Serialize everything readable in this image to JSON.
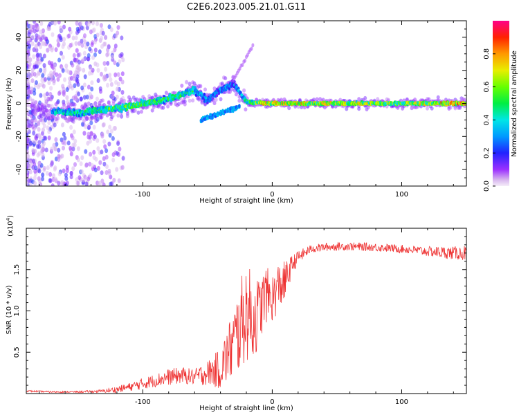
{
  "title": "C2E6.2023.005.21.01.G11",
  "chart_data": [
    {
      "type": "heatmap",
      "title": "C2E6.2023.005.21.01.G11",
      "xlabel": "Height of straight line (km)",
      "ylabel": "Frequency (Hz)",
      "xlim": [
        -190,
        150
      ],
      "ylim": [
        -50,
        50
      ],
      "x_ticks": [
        -100,
        0,
        100
      ],
      "y_ticks": [
        -40,
        -20,
        0,
        20,
        40
      ],
      "grid": false,
      "colorbar": {
        "label": "Normalized spectral amplitude",
        "range": [
          0.0,
          1.0
        ],
        "ticks": [
          0.0,
          0.2,
          0.4,
          0.6,
          0.8
        ]
      },
      "ridge": [
        {
          "x": -165,
          "y": -5,
          "amp": 0.45
        },
        {
          "x": -150,
          "y": -6,
          "amp": 0.5
        },
        {
          "x": -135,
          "y": -4,
          "amp": 0.55
        },
        {
          "x": -120,
          "y": -3,
          "amp": 0.6
        },
        {
          "x": -105,
          "y": -1,
          "amp": 0.6
        },
        {
          "x": -90,
          "y": 1,
          "amp": 0.55
        },
        {
          "x": -75,
          "y": 4,
          "amp": 0.5
        },
        {
          "x": -60,
          "y": 8,
          "amp": 0.5
        },
        {
          "x": -50,
          "y": 2,
          "amp": 0.35
        },
        {
          "x": -40,
          "y": 8,
          "amp": 0.35
        },
        {
          "x": -30,
          "y": 12,
          "amp": 0.3
        },
        {
          "x": -20,
          "y": 1,
          "amp": 0.5
        },
        {
          "x": -5,
          "y": 0,
          "amp": 0.8
        },
        {
          "x": 20,
          "y": 0,
          "amp": 0.75
        },
        {
          "x": 60,
          "y": 0,
          "amp": 0.7
        },
        {
          "x": 100,
          "y": 0,
          "amp": 0.65
        },
        {
          "x": 150,
          "y": 0,
          "amp": 0.85
        }
      ],
      "branch_lower": [
        {
          "x": -55,
          "y": -10
        },
        {
          "x": -40,
          "y": -6
        },
        {
          "x": -25,
          "y": -2
        }
      ]
    },
    {
      "type": "line",
      "xlabel": "Height of straight line (km)",
      "ylabel": "SNR (10 * v/v)",
      "y_multiplier": "(x10",
      "y_multiplier_exp": "4",
      "y_multiplier_close": ")",
      "xlim": [
        -190,
        150
      ],
      "ylim": [
        0,
        2.0
      ],
      "x_ticks": [
        -100,
        0,
        100
      ],
      "y_ticks": [
        0.5,
        1.0,
        1.5
      ],
      "y_tick_labels": [
        "0.5",
        "1.0",
        "1.5"
      ],
      "grid": false,
      "series": [
        {
          "color": "#ee3333",
          "x": [
            -190,
            -170,
            -150,
            -130,
            -120,
            -110,
            -100,
            -90,
            -80,
            -70,
            -60,
            -50,
            -40,
            -35,
            -30,
            -25,
            -20,
            -15,
            -10,
            -5,
            0,
            5,
            10,
            15,
            20,
            30,
            40,
            50,
            60,
            80,
            100,
            120,
            140,
            150
          ],
          "y": [
            0.03,
            0.02,
            0.02,
            0.03,
            0.05,
            0.08,
            0.12,
            0.16,
            0.2,
            0.22,
            0.2,
            0.25,
            0.3,
            0.45,
            0.6,
            0.8,
            1.0,
            0.9,
            1.0,
            1.2,
            1.15,
            1.3,
            1.35,
            1.55,
            1.65,
            1.75,
            1.77,
            1.78,
            1.78,
            1.77,
            1.75,
            1.72,
            1.7,
            1.7
          ],
          "noise": [
            0.01,
            0.01,
            0.01,
            0.02,
            0.04,
            0.05,
            0.07,
            0.08,
            0.1,
            0.1,
            0.1,
            0.15,
            0.25,
            0.35,
            0.45,
            0.55,
            0.6,
            0.55,
            0.4,
            0.35,
            0.3,
            0.3,
            0.25,
            0.12,
            0.08,
            0.05,
            0.05,
            0.05,
            0.05,
            0.05,
            0.05,
            0.06,
            0.08,
            0.09
          ]
        }
      ]
    }
  ]
}
